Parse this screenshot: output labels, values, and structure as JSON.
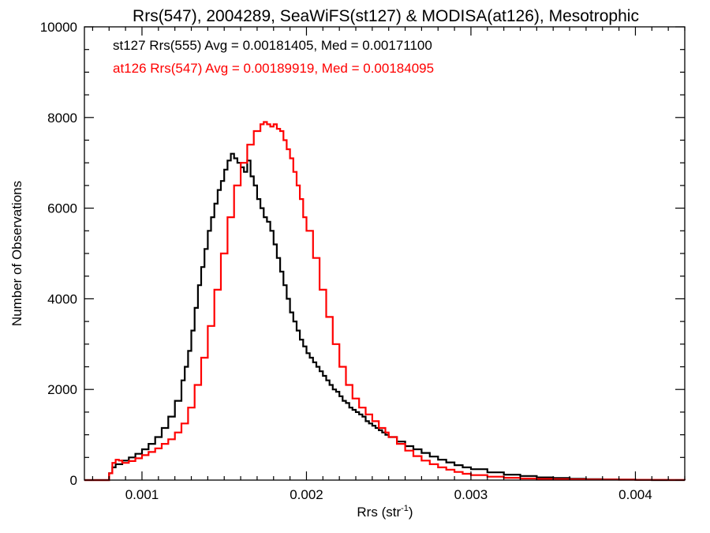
{
  "chart_data": {
    "type": "line",
    "title": "Rrs(547), 2004289, SeaWiFS(st127) & MODISA(at126), Mesotrophic",
    "xlabel_main": "Rrs (str",
    "xlabel_sup": "-1",
    "xlabel_close": ")",
    "ylabel": "Number of Observations",
    "xlim": [
      0.00065,
      0.0043
    ],
    "ylim": [
      0,
      10000
    ],
    "x_ticks": [
      0.001,
      0.002,
      0.003,
      0.004
    ],
    "x_tick_labels": [
      "0.001",
      "0.002",
      "0.003",
      "0.004"
    ],
    "y_ticks": [
      0,
      2000,
      4000,
      6000,
      8000,
      10000
    ],
    "y_tick_labels": [
      "0",
      "2000",
      "4000",
      "6000",
      "8000",
      "10000"
    ],
    "annotations": [
      {
        "text": "st127 Rrs(555) Avg = 0.00181405, Med = 0.00171100",
        "color": "#000000"
      },
      {
        "text": "at126 Rrs(547) Avg = 0.00189919, Med = 0.00184095",
        "color": "#ff0000"
      }
    ],
    "series": [
      {
        "color": "#000000",
        "x": [
          0.00065,
          0.00075,
          0.00078,
          0.0008,
          0.00082,
          0.00084,
          0.00088,
          0.00092,
          0.00096,
          0.001,
          0.00104,
          0.00108,
          0.00112,
          0.00116,
          0.0012,
          0.00124,
          0.00126,
          0.00128,
          0.0013,
          0.00132,
          0.00134,
          0.00136,
          0.00138,
          0.0014,
          0.00142,
          0.00144,
          0.00146,
          0.00148,
          0.0015,
          0.00152,
          0.00154,
          0.00156,
          0.00158,
          0.0016,
          0.00162,
          0.00164,
          0.00166,
          0.00168,
          0.0017,
          0.00172,
          0.00174,
          0.00176,
          0.00178,
          0.0018,
          0.00182,
          0.00184,
          0.00186,
          0.00188,
          0.0019,
          0.00192,
          0.00194,
          0.00196,
          0.00198,
          0.002,
          0.00202,
          0.00204,
          0.00206,
          0.00208,
          0.0021,
          0.00212,
          0.00214,
          0.00216,
          0.00218,
          0.0022,
          0.00222,
          0.00224,
          0.00226,
          0.00228,
          0.0023,
          0.00232,
          0.00234,
          0.00236,
          0.00238,
          0.0024,
          0.00242,
          0.00244,
          0.00246,
          0.00248,
          0.0025,
          0.00255,
          0.0026,
          0.00265,
          0.0027,
          0.00275,
          0.0028,
          0.00285,
          0.0029,
          0.00295,
          0.003,
          0.0031,
          0.0032,
          0.0033,
          0.0034,
          0.0035,
          0.0036,
          0.0037,
          0.0038,
          0.0039,
          0.004,
          0.0041,
          0.0042,
          0.0043
        ],
        "y": [
          0,
          0,
          0,
          150,
          280,
          350,
          430,
          500,
          580,
          680,
          800,
          950,
          1150,
          1400,
          1750,
          2200,
          2500,
          2850,
          3300,
          3800,
          4300,
          4700,
          5100,
          5500,
          5800,
          6100,
          6400,
          6600,
          6850,
          7050,
          7200,
          7100,
          7000,
          6900,
          6800,
          7050,
          6700,
          6500,
          6200,
          6000,
          5800,
          5700,
          5500,
          5200,
          4900,
          4600,
          4300,
          4000,
          3700,
          3500,
          3300,
          3100,
          2950,
          2800,
          2700,
          2600,
          2500,
          2400,
          2300,
          2200,
          2100,
          2000,
          1950,
          1850,
          1750,
          1700,
          1600,
          1550,
          1500,
          1450,
          1400,
          1300,
          1250,
          1200,
          1150,
          1100,
          1050,
          1000,
          950,
          850,
          750,
          680,
          600,
          520,
          450,
          390,
          330,
          280,
          240,
          170,
          120,
          90,
          60,
          45,
          30,
          20,
          15,
          10,
          5,
          0,
          0,
          0
        ]
      },
      {
        "color": "#ff0000",
        "x": [
          0.00065,
          0.00075,
          0.00078,
          0.0008,
          0.00082,
          0.00084,
          0.00086,
          0.00088,
          0.00092,
          0.00096,
          0.001,
          0.00104,
          0.00108,
          0.00112,
          0.00116,
          0.0012,
          0.00124,
          0.00128,
          0.00132,
          0.00136,
          0.0014,
          0.00144,
          0.00148,
          0.00152,
          0.00156,
          0.0016,
          0.00164,
          0.00168,
          0.00172,
          0.00174,
          0.00176,
          0.00178,
          0.0018,
          0.00182,
          0.00184,
          0.00186,
          0.00188,
          0.0019,
          0.00192,
          0.00194,
          0.00196,
          0.00198,
          0.002,
          0.00204,
          0.00208,
          0.00212,
          0.00216,
          0.0022,
          0.00224,
          0.00228,
          0.00232,
          0.00236,
          0.0024,
          0.00244,
          0.00248,
          0.0025,
          0.00255,
          0.0026,
          0.00265,
          0.0027,
          0.00275,
          0.0028,
          0.00285,
          0.0029,
          0.00295,
          0.003,
          0.0031,
          0.0032,
          0.0033,
          0.0034,
          0.0035,
          0.0036,
          0.0037,
          0.0038,
          0.0039,
          0.004,
          0.0041,
          0.0042,
          0.0043
        ],
        "y": [
          0,
          0,
          0,
          150,
          380,
          450,
          430,
          380,
          420,
          480,
          550,
          620,
          700,
          800,
          900,
          1050,
          1250,
          1600,
          2100,
          2700,
          3400,
          4200,
          5000,
          5800,
          6500,
          7000,
          7400,
          7700,
          7850,
          7900,
          7850,
          7800,
          7850,
          7750,
          7700,
          7500,
          7300,
          7100,
          6800,
          6500,
          6200,
          5800,
          5500,
          4900,
          4200,
          3600,
          3000,
          2500,
          2100,
          1800,
          1600,
          1450,
          1300,
          1150,
          1050,
          950,
          800,
          650,
          530,
          430,
          350,
          280,
          230,
          180,
          140,
          110,
          75,
          50,
          35,
          25,
          20,
          15,
          12,
          10,
          8,
          6,
          5,
          3,
          0
        ]
      }
    ]
  }
}
